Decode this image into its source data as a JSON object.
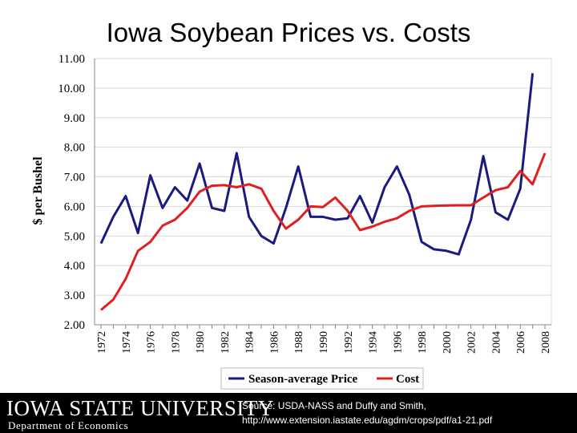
{
  "slide": {
    "title": "Iowa Soybean Prices vs. Costs"
  },
  "footer": {
    "logo_text": "IOWA STATE UNIVERSITY",
    "department": "Department of Economics",
    "source_line1": "Source: USDA-NASS and Duffy and Smith,",
    "source_line2": "http://www.extension.iastate.edu/agdm/crops/pdf/a1-21.pdf"
  },
  "colors": {
    "price": "#1a1a80",
    "cost": "#e02020",
    "grid": "#d9d9d9",
    "axis": "#888888"
  },
  "chart_data": {
    "type": "line",
    "title": "Iowa Soybean Prices vs. Costs",
    "ylabel": "$ per Bushel",
    "xlabel": "",
    "ylim": [
      2.0,
      11.0
    ],
    "yticks": [
      "2.00",
      "3.00",
      "4.00",
      "5.00",
      "6.00",
      "7.00",
      "8.00",
      "9.00",
      "10.00",
      "11.00"
    ],
    "x": [
      1972,
      1973,
      1974,
      1975,
      1976,
      1977,
      1978,
      1979,
      1980,
      1981,
      1982,
      1983,
      1984,
      1985,
      1986,
      1987,
      1988,
      1989,
      1990,
      1991,
      1992,
      1993,
      1994,
      1995,
      1996,
      1997,
      1998,
      1999,
      2000,
      2001,
      2002,
      2003,
      2004,
      2005,
      2006,
      2007,
      2008
    ],
    "xticks": [
      "1972",
      "1974",
      "1976",
      "1978",
      "1980",
      "1982",
      "1984",
      "1986",
      "1988",
      "1990",
      "1992",
      "1994",
      "1996",
      "1998",
      "2000",
      "2002",
      "2004",
      "2006",
      "2008"
    ],
    "legend_position": "bottom",
    "grid": true,
    "series": [
      {
        "name": "Season-average Price",
        "color": "#1a1a80",
        "values": [
          4.75,
          5.65,
          6.35,
          5.1,
          7.05,
          5.95,
          6.65,
          6.2,
          7.45,
          5.95,
          5.85,
          7.8,
          5.65,
          5.0,
          4.75,
          5.95,
          7.35,
          5.65,
          5.65,
          5.55,
          5.6,
          6.35,
          5.45,
          6.65,
          7.35,
          6.4,
          4.8,
          4.55,
          4.5,
          4.38,
          5.55,
          7.7,
          5.8,
          5.55,
          6.6,
          10.5,
          null
        ],
        "note": "ends at 2007"
      },
      {
        "name": "Cost",
        "color": "#e02020",
        "values": [
          2.5,
          2.85,
          3.55,
          4.5,
          4.8,
          5.35,
          5.55,
          5.95,
          6.5,
          6.7,
          6.72,
          6.65,
          6.75,
          6.6,
          5.85,
          5.25,
          5.55,
          6.0,
          5.98,
          6.3,
          5.85,
          5.2,
          5.32,
          5.48,
          5.6,
          5.85,
          6.0,
          6.02,
          6.03,
          6.04,
          6.04,
          6.3,
          6.55,
          6.65,
          7.2,
          6.75,
          7.8
        ]
      }
    ]
  }
}
